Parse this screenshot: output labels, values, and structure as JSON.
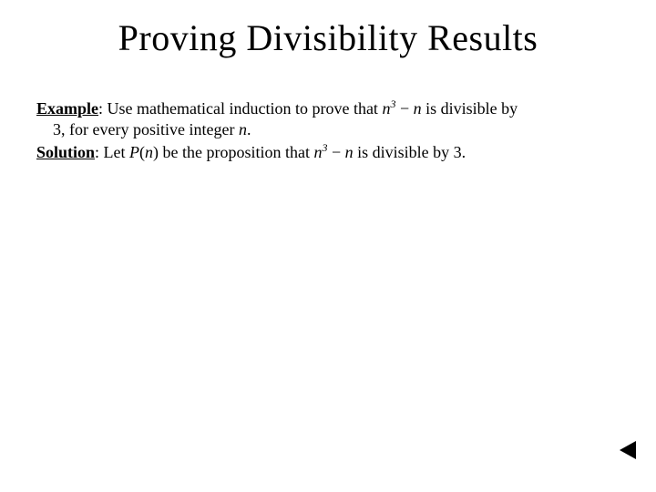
{
  "slide": {
    "title": "Proving Divisibility Results",
    "example_label": "Example",
    "example_text_1": ": Use mathematical induction to prove that ",
    "expr_n": "n",
    "expr_sup": "3",
    "expr_minus": " − ",
    "expr_n2": "n",
    "example_text_2": " is divisible by",
    "example_line2_a": "3, for every positive integer ",
    "example_line2_b": "n",
    "example_line2_c": ".",
    "solution_label": "Solution",
    "solution_text_1": ": Let ",
    "solution_pn_p": "P",
    "solution_pn_paren1": "(",
    "solution_pn_n": "n",
    "solution_pn_paren2": ")",
    "solution_text_2": " be the proposition that ",
    "solution_text_3": " is divisible by 3."
  },
  "style": {
    "background_color": "#ffffff",
    "text_color": "#000000",
    "title_fontsize": 40,
    "body_fontsize": 18,
    "font_family": "Times New Roman"
  }
}
